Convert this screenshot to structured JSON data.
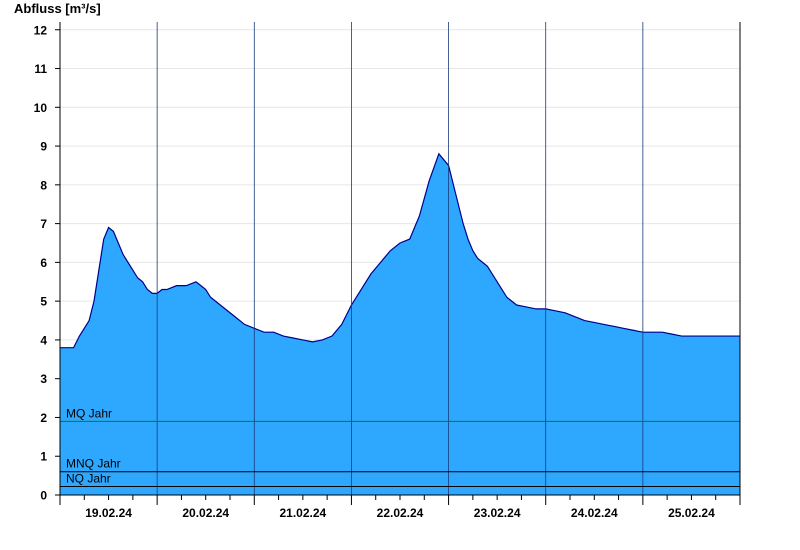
{
  "chart_data": {
    "type": "area",
    "title": "",
    "ylabel": "Abfluss [m³/s]",
    "xlabel": "",
    "ylim": [
      0,
      12.2
    ],
    "xlim": [
      0,
      7
    ],
    "y_ticks": [
      0,
      1,
      2,
      3,
      4,
      5,
      6,
      7,
      8,
      9,
      10,
      11,
      12
    ],
    "x_tick_labels": [
      "19.02.24",
      "20.02.24",
      "21.02.24",
      "22.02.24",
      "23.02.24",
      "24.02.24",
      "25.02.24"
    ],
    "x_label_positions_days": [
      0.5,
      1.5,
      2.5,
      3.5,
      4.5,
      5.5,
      6.5
    ],
    "day_boundaries_days": [
      1,
      2,
      3,
      4,
      5,
      6
    ],
    "grid": "horizontal",
    "fill_color": "#2ea8fe",
    "line_color": "#00008b",
    "series": [
      {
        "x": [
          0,
          0.14,
          0.2,
          0.25,
          0.3,
          0.35,
          0.4,
          0.45,
          0.5,
          0.55,
          0.6,
          0.65,
          0.7,
          0.75,
          0.8,
          0.85,
          0.9,
          0.95,
          1.0,
          1.05,
          1.1,
          1.2,
          1.3,
          1.4,
          1.45,
          1.5,
          1.55,
          1.6,
          1.7,
          1.75,
          1.8,
          1.9,
          2.0,
          2.1,
          2.2,
          2.3,
          2.4,
          2.5,
          2.6,
          2.7,
          2.8,
          2.9,
          3.0,
          3.1,
          3.2,
          3.3,
          3.4,
          3.5,
          3.6,
          3.7,
          3.8,
          3.9,
          4.0,
          4.05,
          4.1,
          4.15,
          4.2,
          4.25,
          4.3,
          4.35,
          4.4,
          4.45,
          4.5,
          4.55,
          4.6,
          4.65,
          4.7,
          4.8,
          4.9,
          5.0,
          5.1,
          5.2,
          5.3,
          5.4,
          5.5,
          5.6,
          5.7,
          5.8,
          5.9,
          6.0,
          6.1,
          6.2,
          6.3,
          6.4,
          6.5,
          6.6,
          6.7,
          7.0
        ],
        "y": [
          3.8,
          3.8,
          4.1,
          4.3,
          4.5,
          5.0,
          5.8,
          6.6,
          6.9,
          6.8,
          6.5,
          6.2,
          6.0,
          5.8,
          5.6,
          5.5,
          5.3,
          5.2,
          5.2,
          5.3,
          5.3,
          5.4,
          5.4,
          5.5,
          5.4,
          5.3,
          5.1,
          5.0,
          4.8,
          4.7,
          4.6,
          4.4,
          4.3,
          4.2,
          4.2,
          4.1,
          4.05,
          4.0,
          3.95,
          4.0,
          4.1,
          4.4,
          4.9,
          5.3,
          5.7,
          6.0,
          6.3,
          6.5,
          6.6,
          7.2,
          8.1,
          8.8,
          8.5,
          8.0,
          7.5,
          7.0,
          6.6,
          6.3,
          6.1,
          6.0,
          5.9,
          5.7,
          5.5,
          5.3,
          5.1,
          5.0,
          4.9,
          4.85,
          4.8,
          4.8,
          4.75,
          4.7,
          4.6,
          4.5,
          4.45,
          4.4,
          4.35,
          4.3,
          4.25,
          4.2,
          4.2,
          4.2,
          4.15,
          4.1,
          4.1,
          4.1,
          4.1,
          4.1
        ]
      }
    ],
    "reference_lines": [
      {
        "label": "MQ Jahr",
        "value": 1.9,
        "color": "#008000"
      },
      {
        "label": "MNQ Jahr",
        "value": 0.6,
        "color": "#000000"
      },
      {
        "label": "NQ Jahr",
        "value": 0.22,
        "color": "#000000"
      }
    ]
  }
}
